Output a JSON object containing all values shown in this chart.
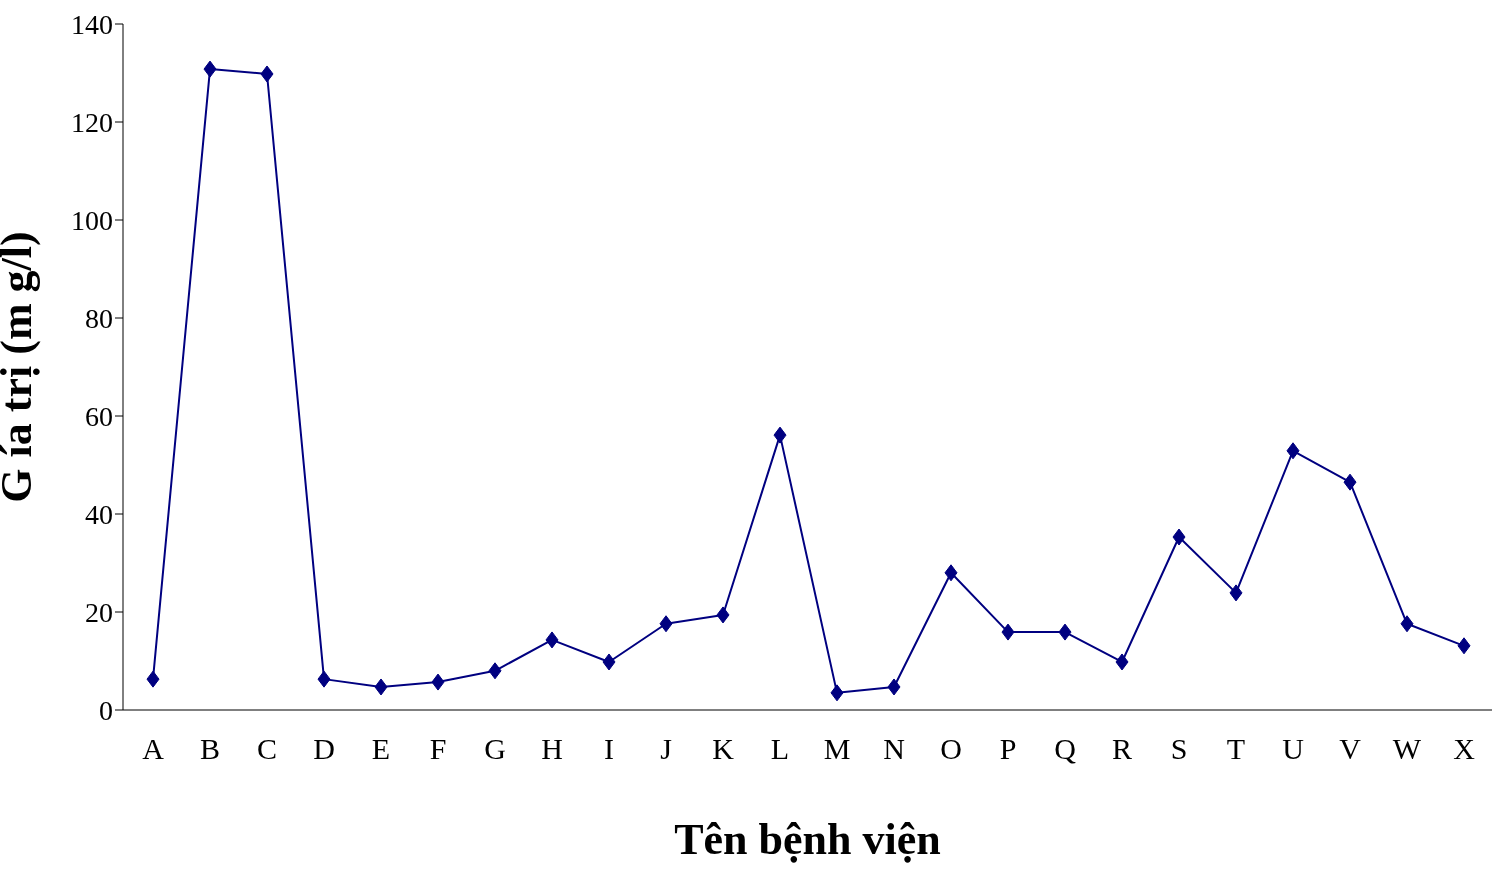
{
  "chart_data": {
    "type": "line",
    "xlabel": "Tên bệnh viện",
    "ylabel": "G ía  trị (m g/l)",
    "categories": [
      "A",
      "B",
      "C",
      "D",
      "E",
      "F",
      "G",
      "H",
      "I",
      "J",
      "K",
      "L",
      "M",
      "N",
      "O",
      "P",
      "Q",
      "R",
      "S",
      "T",
      "U",
      "V",
      "W",
      "X"
    ],
    "series": [
      {
        "color": "#000080",
        "values": [
          6.3,
          130.8,
          129.8,
          6.3,
          4.7,
          5.7,
          8,
          14.3,
          9.8,
          17.6,
          19.4,
          56.1,
          3.5,
          4.7,
          28,
          15.9,
          15.9,
          9.8,
          35.3,
          23.9,
          52.9,
          46.5,
          17.6,
          13.1
        ]
      }
    ],
    "ylim": [
      0,
      140
    ],
    "yticks": [
      0,
      20,
      40,
      60,
      80,
      100,
      120,
      140
    ],
    "grid": false,
    "legend": false,
    "marker": "diamond",
    "line_style": "solid"
  }
}
